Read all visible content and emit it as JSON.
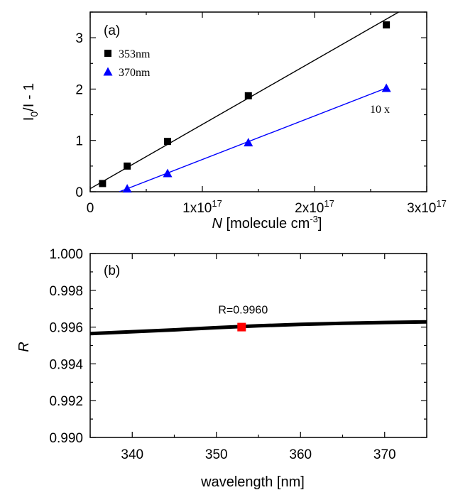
{
  "chart_data": [
    {
      "type": "scatter",
      "panel_label": "(a)",
      "ylabel": {
        "main": "I",
        "sub": "0",
        "rest": "/I - 1"
      },
      "xlabel": {
        "italic": "N",
        "rest": " [molecule cm",
        "sup": "-3",
        "end": "]"
      },
      "xlim": [
        0,
        3e+17
      ],
      "ylim": [
        0,
        3.5
      ],
      "x_ticks": [
        {
          "value": 0,
          "mant": "0",
          "exp": ""
        },
        {
          "value": 1e+17,
          "mant": "1x10",
          "exp": "17"
        },
        {
          "value": 2e+17,
          "mant": "2x10",
          "exp": "17"
        },
        {
          "value": 3e+17,
          "mant": "3x10",
          "exp": "17"
        }
      ],
      "y_ticks": [
        "0",
        "1",
        "2",
        "3"
      ],
      "annotation": "10 x",
      "series": [
        {
          "name": "353nm",
          "marker": "square",
          "color": "#000000",
          "points": [
            {
              "x": 1.1e+16,
              "y": 0.16
            },
            {
              "x": 3.3e+16,
              "y": 0.5
            },
            {
              "x": 6.9e+16,
              "y": 0.98
            },
            {
              "x": 1.41e+17,
              "y": 1.87
            },
            {
              "x": 2.64e+17,
              "y": 3.25
            }
          ],
          "fit": {
            "x0": 0,
            "y0": 0.06,
            "x1": 2.75e+17,
            "y1": 3.5
          }
        },
        {
          "name": "370nm",
          "marker": "triangle",
          "color": "#0000ff",
          "points": [
            {
              "x": 3.3e+16,
              "y": 0.06
            },
            {
              "x": 6.9e+16,
              "y": 0.36
            },
            {
              "x": 1.41e+17,
              "y": 0.96
            },
            {
              "x": 2.64e+17,
              "y": 2.02
            }
          ],
          "fit": {
            "x0": 2.6e+16,
            "y0": 0.0,
            "x1": 2.64e+17,
            "y1": 2.02
          }
        }
      ]
    },
    {
      "type": "line",
      "panel_label": "(b)",
      "ylabel": "R",
      "xlabel": "wavelength [nm]",
      "xlim": [
        335,
        375
      ],
      "ylim": [
        0.99,
        1.0
      ],
      "x_ticks": [
        "340",
        "350",
        "360",
        "370"
      ],
      "y_ticks": [
        "0.990",
        "0.992",
        "0.994",
        "0.996",
        "0.998",
        "1.000"
      ],
      "series": [
        {
          "color": "#000000",
          "x": [
            335,
            340,
            345,
            350,
            355,
            360,
            365,
            370,
            375
          ],
          "y": [
            0.99565,
            0.99575,
            0.99585,
            0.99597,
            0.99607,
            0.99615,
            0.99621,
            0.99625,
            0.99628
          ]
        }
      ],
      "highlight": {
        "x": 353,
        "y": 0.996,
        "label": "R=0.9960",
        "color": "#ff0000"
      }
    }
  ]
}
